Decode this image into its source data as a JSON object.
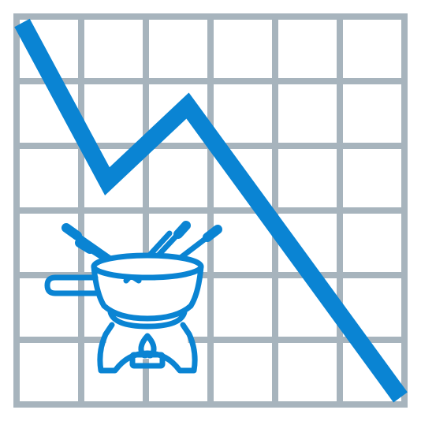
{
  "icon": {
    "name": "fondue-price-decline-icon",
    "description_visible": false
  },
  "colors": {
    "grid": "#A7B4BD",
    "trend": "#0A84D3",
    "fondue": "#0A84D3",
    "background": "#FFFFFF"
  },
  "grid": {
    "columns": 6,
    "rows": 6
  },
  "trend": {
    "direction": "down",
    "shape": "declining line with one rebound"
  },
  "fondue": {
    "forks": 4,
    "has_burner": true,
    "has_handle": true
  }
}
